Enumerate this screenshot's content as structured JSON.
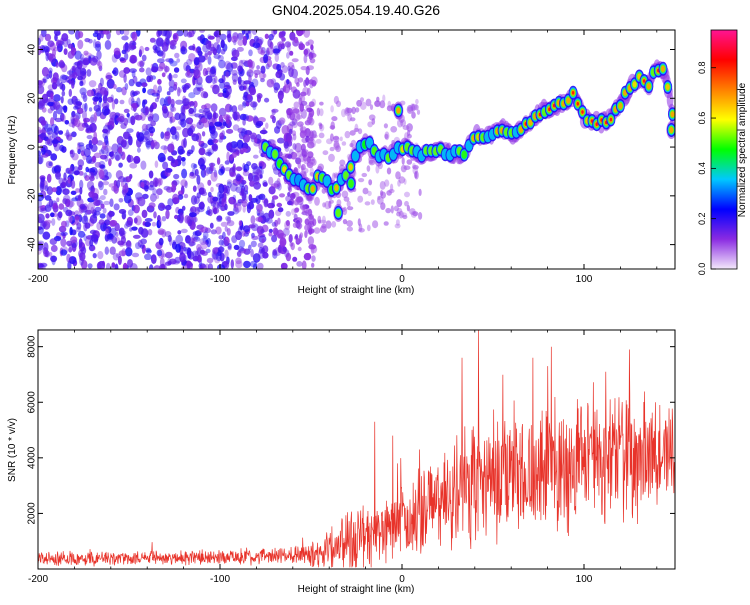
{
  "figure_title": "GN04.2025.054.19.40.G26",
  "chart_data": [
    {
      "type": "heatmap",
      "title": "",
      "xlabel": "Height of straight line (km)",
      "ylabel": "Frequency (Hz)",
      "xlim": [
        -200,
        150
      ],
      "ylim": [
        -50,
        48
      ],
      "xticks": [
        -200,
        -100,
        0,
        100
      ],
      "yticks": [
        -40,
        -20,
        0,
        20,
        40
      ],
      "colorbar": {
        "label": "Normalized spectral amplitude",
        "range": [
          0,
          0.95
        ],
        "ticks": [
          0.0,
          0.2,
          0.4,
          0.6,
          0.8
        ],
        "colors": [
          "#f4e9fb",
          "#8a2be2",
          "#0000ff",
          "#00c8ff",
          "#00ff00",
          "#ffff00",
          "#ff8000",
          "#ff0000",
          "#ff1493"
        ]
      },
      "noise_region": {
        "x_range": [
          -200,
          -48
        ],
        "freq_range": [
          -50,
          48
        ],
        "amplitude_range": [
          0.02,
          0.12
        ]
      },
      "ridge": {
        "x": [
          -75,
          -70,
          -65,
          -60,
          -55,
          -50,
          -46,
          -42,
          -38,
          -35,
          -32,
          -28,
          -25,
          -22,
          -18,
          -15,
          -10,
          -5,
          0,
          5,
          10,
          15,
          20,
          25,
          30,
          35,
          40,
          45,
          50,
          55,
          60,
          65,
          70,
          75,
          80,
          85,
          90,
          95,
          100,
          105,
          110,
          115,
          120,
          125,
          130,
          135,
          140,
          145,
          150
        ],
        "freq": [
          0,
          -3,
          -8,
          -12,
          -15,
          -18,
          -12,
          -14,
          -18,
          -17,
          -12,
          -8,
          -2,
          0,
          2,
          -2,
          -4,
          -3,
          0,
          -1,
          -3,
          -2,
          -1,
          -2,
          -3,
          -2,
          5,
          4,
          6,
          8,
          5,
          8,
          10,
          14,
          16,
          17,
          18,
          22,
          12,
          10,
          10,
          12,
          18,
          24,
          28,
          25,
          33,
          30,
          8
        ],
        "amplitude": [
          0.5,
          0.55,
          0.6,
          0.5,
          0.45,
          0.6,
          0.7,
          0.5,
          0.55,
          0.65,
          0.5,
          0.55,
          0.5,
          0.45,
          0.5,
          0.45,
          0.5,
          0.55,
          0.6,
          0.55,
          0.5,
          0.6,
          0.55,
          0.5,
          0.55,
          0.6,
          0.65,
          0.55,
          0.6,
          0.7,
          0.6,
          0.65,
          0.7,
          0.8,
          0.75,
          0.7,
          0.75,
          0.8,
          0.85,
          0.8,
          0.85,
          0.9,
          0.85,
          0.8,
          0.85,
          0.9,
          0.85,
          0.8,
          0.7
        ]
      },
      "isolated_blobs": [
        {
          "x": -2,
          "freq": 15,
          "amplitude": 0.7
        },
        {
          "x": -35,
          "freq": -27,
          "amplitude": 0.55
        },
        {
          "x": -28,
          "freq": -15,
          "amplitude": 0.5
        },
        {
          "x": 148,
          "freq": 7,
          "amplitude": 0.75
        }
      ]
    },
    {
      "type": "line",
      "title": "",
      "xlabel": "Height of straight line (km)",
      "ylabel": "SNR (10 * v/v)",
      "xlim": [
        -200,
        150
      ],
      "ylim": [
        0,
        8600
      ],
      "xticks": [
        -200,
        -100,
        0,
        100
      ],
      "yticks": [
        2000,
        4000,
        6000,
        8000
      ],
      "color": "#e8332a",
      "envelope": {
        "x": [
          -200,
          -120,
          -70,
          -55,
          -45,
          -35,
          -25,
          -15,
          -5,
          5,
          20,
          35,
          50,
          70,
          90,
          110,
          130,
          150
        ],
        "mean": [
          350,
          400,
          450,
          500,
          600,
          900,
          1200,
          1100,
          1500,
          1800,
          2400,
          3000,
          3300,
          3500,
          3700,
          3800,
          3900,
          4000
        ],
        "spread": [
          300,
          300,
          350,
          450,
          700,
          1200,
          1600,
          1400,
          1600,
          1800,
          2200,
          2600,
          2800,
          2800,
          2800,
          2700,
          2600,
          2500
        ]
      },
      "peaks": [
        {
          "x": -15,
          "y": 5300
        },
        {
          "x": -5,
          "y": 4800
        },
        {
          "x": 42,
          "y": 8600
        },
        {
          "x": 33,
          "y": 7600
        },
        {
          "x": 72,
          "y": 7600
        },
        {
          "x": 125,
          "y": 7900
        },
        {
          "x": 112,
          "y": 7100
        },
        {
          "x": 80,
          "y": 7300
        }
      ]
    }
  ]
}
